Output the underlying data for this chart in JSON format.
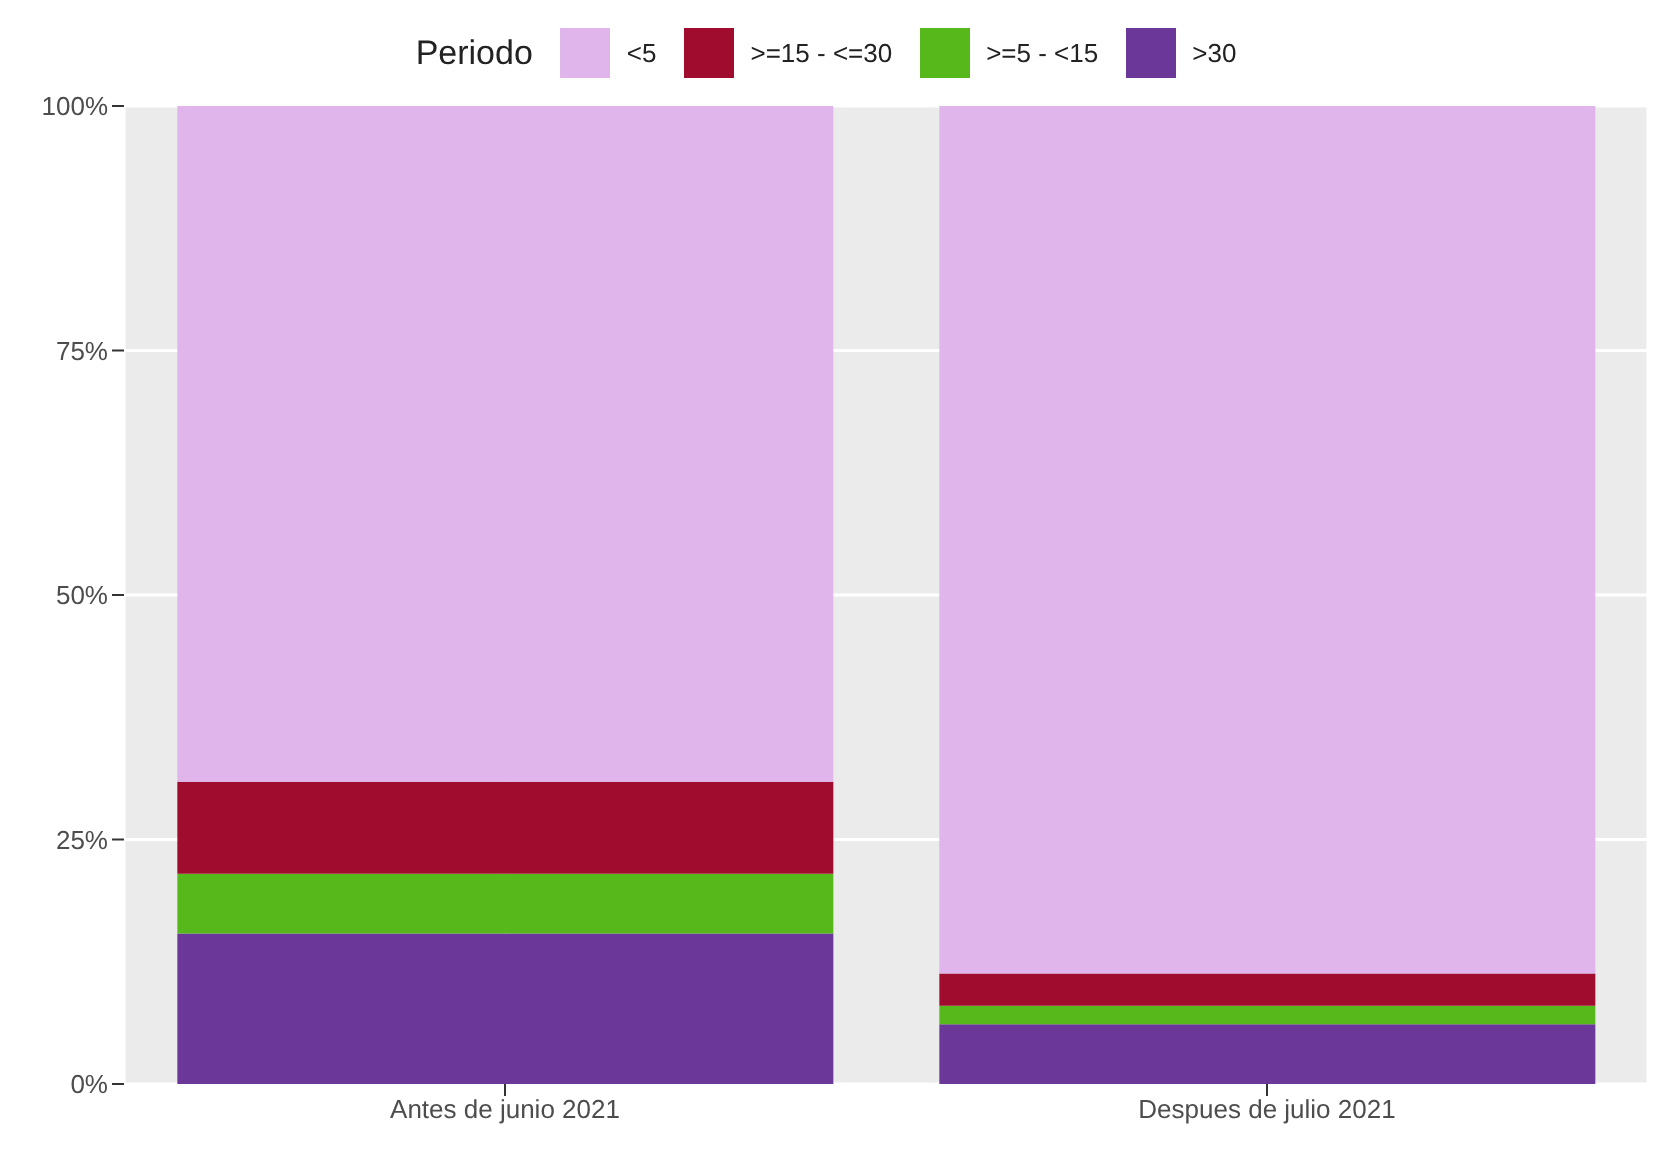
{
  "chart_data": {
    "type": "bar",
    "stacked": true,
    "legend_title": "Periodo",
    "legend": "top",
    "grid": true,
    "categories": [
      "Antes de junio 2021",
      "Despues de julio 2021"
    ],
    "series": [
      {
        "name": ">30",
        "color": "#6b3798",
        "values": [
          15.4,
          6.1
        ]
      },
      {
        "name": ">=5 - <15",
        "color": "#56b81a",
        "values": [
          6.1,
          1.9
        ]
      },
      {
        "name": ">=15 - <=30",
        "color": "#a00c2e",
        "values": [
          9.4,
          3.3
        ]
      },
      {
        "name": "<5",
        "color": "#dfb5ec",
        "values": [
          69.1,
          88.7
        ]
      }
    ],
    "ylim": [
      0,
      100
    ],
    "yticks": [
      {
        "value": 0,
        "label": "0%"
      },
      {
        "value": 25,
        "label": "25%"
      },
      {
        "value": 50,
        "label": "50%"
      },
      {
        "value": 75,
        "label": "75%"
      },
      {
        "value": 100,
        "label": "100%"
      }
    ]
  }
}
